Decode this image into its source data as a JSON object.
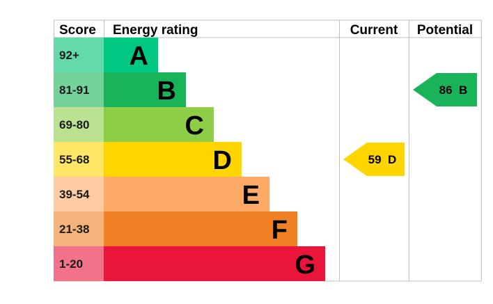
{
  "chart_data": {
    "type": "bar",
    "headers": {
      "score": "Score",
      "rating": "Energy rating",
      "current": "Current",
      "potential": "Potential"
    },
    "bands": [
      {
        "letter": "A",
        "range": "92+",
        "min": 92,
        "max": 100,
        "color": "#00c781",
        "score_bg": "#66d9a8"
      },
      {
        "letter": "B",
        "range": "81-91",
        "min": 81,
        "max": 91,
        "color": "#19b459",
        "score_bg": "#75d29b"
      },
      {
        "letter": "C",
        "range": "69-80",
        "min": 69,
        "max": 80,
        "color": "#8dce46",
        "score_bg": "#bbe290"
      },
      {
        "letter": "D",
        "range": "55-68",
        "min": 55,
        "max": 68,
        "color": "#ffd500",
        "score_bg": "#ffe666"
      },
      {
        "letter": "E",
        "range": "39-54",
        "min": 39,
        "max": 54,
        "color": "#fcaa65",
        "score_bg": "#fdcca3"
      },
      {
        "letter": "F",
        "range": "21-38",
        "min": 21,
        "max": 38,
        "color": "#ef8023",
        "score_bg": "#f5b37b"
      },
      {
        "letter": "G",
        "range": "1-20",
        "min": 1,
        "max": 20,
        "color": "#e9153b",
        "score_bg": "#f27389"
      }
    ],
    "current": {
      "value": 59,
      "band": "D",
      "label": "59 D",
      "color": "#ffd500",
      "text_color": "#000000"
    },
    "potential": {
      "value": 86,
      "band": "B",
      "label": "86 B",
      "color": "#19b459",
      "text_color": "#000000"
    },
    "colors": {
      "grid": "#bfbfbf",
      "background": "#ffffff"
    }
  }
}
